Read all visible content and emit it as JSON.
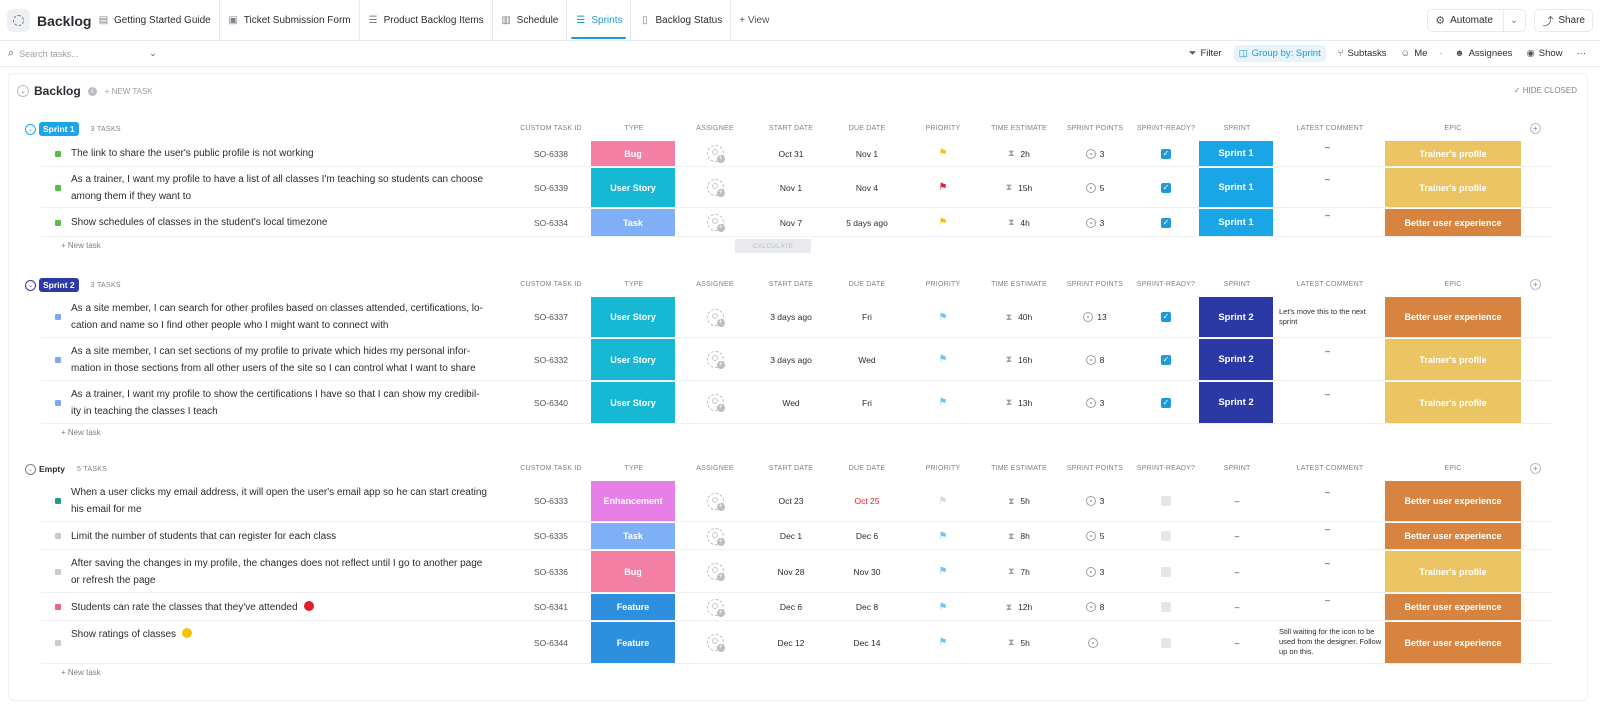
{
  "app": {
    "space_title": "Backlog",
    "views": [
      {
        "label": "Getting Started Guide",
        "icon": "doc-icon"
      },
      {
        "label": "Ticket Submission Form",
        "icon": "form-icon"
      },
      {
        "label": "Product Backlog Items",
        "icon": "list-icon"
      },
      {
        "label": "Schedule",
        "icon": "calendar-icon"
      },
      {
        "label": "Sprints",
        "icon": "list-icon",
        "active": true
      },
      {
        "label": "Backlog Status",
        "icon": "board-icon"
      }
    ],
    "add_view": "+ View",
    "automate": "Automate",
    "share": "Share"
  },
  "toolbar": {
    "search_placeholder": "Search tasks...",
    "filter": "Filter",
    "group_by": "Group by: Sprint",
    "subtasks": "Subtasks",
    "me": "Me",
    "assignees": "Assignees",
    "show": "Show",
    "more": "···"
  },
  "list": {
    "title": "Backlog",
    "new_task": "+ NEW TASK",
    "hide_closed": "HIDE CLOSED",
    "new_task_row": "+ New task",
    "calculate": "CALCULATE"
  },
  "columns": [
    "CUSTOM TASK ID",
    "TYPE",
    "ASSIGNEE",
    "START DATE",
    "DUE DATE",
    "PRIORITY",
    "TIME ESTIMATE",
    "SPRINT POINTS",
    "SPRINT-READY?",
    "SPRINT",
    "LATEST COMMENT",
    "EPIC"
  ],
  "colors": {
    "bug": "#f47fa4",
    "user_story": "#17b8d4",
    "task": "#7fb0f7",
    "enhancement": "#e67fe8",
    "feature": "#2f8fdf",
    "sprint1": "#1aa5e6",
    "sprint2": "#2b39a4",
    "trainers_profile": "#ebc564",
    "better_ux": "#d6843f",
    "flag_yellow": "#f5c30c",
    "flag_red": "#e21e2e",
    "flag_blue": "#6fc7f0",
    "flag_gray": "#d5d7db",
    "green": "#5bbd48",
    "blue_square": "#7fa8f2",
    "teal": "#1b9e8a",
    "gray_square": "#c8cbd1",
    "pink_square": "#f0647c"
  },
  "groups": [
    {
      "label": "Sprint 1",
      "count": "3 TASKS",
      "tasks": [
        {
          "name": "The link to share the user's public profile is not working",
          "id": "SO-6338",
          "type": "Bug",
          "start": "Oct 31",
          "due": "Nov 1",
          "priority": "yellow",
          "estimate": "2h",
          "points": "3",
          "ready": true,
          "sprint": "Sprint 1",
          "comment": "–",
          "epic": "Trainer's profile"
        },
        {
          "name": "As a trainer, I want my profile to have a list of all classes I'm teaching so students can choose among them if they want to",
          "id": "SO-6339",
          "type": "User Story",
          "start": "Nov 1",
          "due": "Nov 4",
          "priority": "red",
          "estimate": "15h",
          "points": "5",
          "ready": true,
          "sprint": "Sprint 1",
          "comment": "–",
          "epic": "Trainer's profile"
        },
        {
          "name": "Show schedules of classes in the student's local timezone",
          "id": "SO-6334",
          "type": "Task",
          "start": "Nov 7",
          "due": "5 days ago",
          "priority": "yellow",
          "estimate": "4h",
          "points": "3",
          "ready": true,
          "sprint": "Sprint 1",
          "comment": "–",
          "epic": "Better user experience"
        }
      ]
    },
    {
      "label": "Sprint 2",
      "count": "3 TASKS",
      "tasks": [
        {
          "name": "As a site member, I can search for other profiles based on classes attended, certifications, lo-cation and name so I find other people who I might want to connect with",
          "id": "SO-6337",
          "type": "User Story",
          "start": "3 days ago",
          "due": "Fri",
          "priority": "blue",
          "estimate": "40h",
          "points": "13",
          "ready": true,
          "sprint": "Sprint 2",
          "comment": "Let's move this to the next sprint",
          "epic": "Better user experience"
        },
        {
          "name": "As a site member, I can set sections of my profile to private which hides my personal infor-mation in those sections from all other users of the site so I can control what I want to share",
          "id": "SO-6332",
          "type": "User Story",
          "start": "3 days ago",
          "due": "Wed",
          "priority": "blue",
          "estimate": "16h",
          "points": "8",
          "ready": true,
          "sprint": "Sprint 2",
          "comment": "–",
          "epic": "Trainer's profile"
        },
        {
          "name": "As a trainer, I want my profile to show the certifications I have so that I can show my credibil-ity in teaching the classes I teach",
          "id": "SO-6340",
          "type": "User Story",
          "start": "Wed",
          "due": "Fri",
          "priority": "blue",
          "estimate": "13h",
          "points": "3",
          "ready": true,
          "sprint": "Sprint 2",
          "comment": "–",
          "epic": "Trainer's profile"
        }
      ]
    },
    {
      "label": "Empty",
      "count": "5 TASKS",
      "tasks": [
        {
          "name": "When a user clicks my email address, it will open the user's email app so he can start creating his email for me",
          "id": "SO-6333",
          "type": "Enhancement",
          "start": "Oct 23",
          "due": "Oct 25",
          "priority": "gray",
          "estimate": "5h",
          "points": "3",
          "ready": false,
          "sprint": "–",
          "comment": "–",
          "epic": "Better user experience"
        },
        {
          "name": "Limit the number of students that can register for each class",
          "id": "SO-6335",
          "type": "Task",
          "start": "Dec 1",
          "due": "Dec 6",
          "priority": "blue",
          "estimate": "8h",
          "points": "5",
          "ready": false,
          "sprint": "–",
          "comment": "–",
          "epic": "Better user experience"
        },
        {
          "name": "After saving the changes in my profile, the changes does not reflect until I go to another page or refresh the page",
          "id": "SO-6336",
          "type": "Bug",
          "start": "Nov 28",
          "due": "Nov 30",
          "priority": "blue",
          "estimate": "7h",
          "points": "3",
          "ready": false,
          "sprint": "–",
          "comment": "–",
          "epic": "Trainer's profile"
        },
        {
          "name": "Students can rate the classes that they've attended",
          "id": "SO-6341",
          "type": "Feature",
          "start": "Dec 6",
          "due": "Dec 8",
          "priority": "blue",
          "estimate": "12h",
          "points": "8",
          "ready": false,
          "sprint": "–",
          "comment": "–",
          "epic": "Better user experience"
        },
        {
          "name": "Show ratings of classes",
          "id": "SO-6344",
          "type": "Feature",
          "start": "Dec 12",
          "due": "Dec 14",
          "priority": "blue",
          "estimate": "5h",
          "points": "",
          "ready": false,
          "sprint": "–",
          "comment": "Still waiting for the icon to be used from the designer. Follow up on this.",
          "epic": "Better user experience"
        }
      ]
    }
  ]
}
